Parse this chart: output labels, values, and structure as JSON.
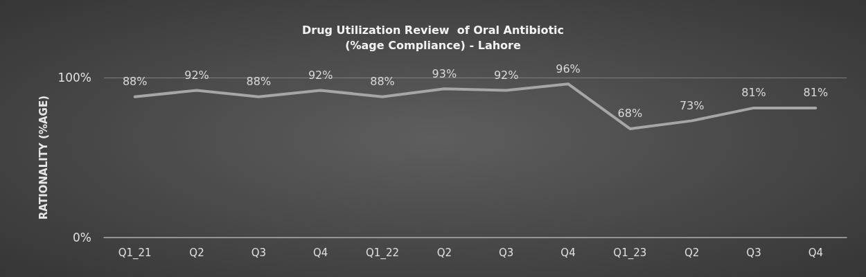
{
  "chart_data": {
    "type": "line",
    "title": "Drug Utilization Review  of Oral Antibiotic",
    "subtitle": "(%age Compliance) - Lahore",
    "ylabel": "RATIONALITY (%AGE)",
    "categories": [
      "Q1_21",
      "Q2",
      "Q3",
      "Q4",
      "Q1_22",
      "Q2",
      "Q3",
      "Q4",
      "Q1_23",
      "Q2",
      "Q3",
      "Q4"
    ],
    "series": [
      {
        "color": "#a6a6a6",
        "values": [
          88,
          92,
          88,
          92,
          88,
          93,
          92,
          96,
          68,
          73,
          81,
          81
        ],
        "value_labels": [
          "88%",
          "92%",
          "88%",
          "92%",
          "88%",
          "93%",
          "92%",
          "96%",
          "68%",
          "73%",
          "81%",
          "81%"
        ]
      }
    ],
    "ylim": [
      0,
      100
    ],
    "yticks": [
      {
        "value": 0,
        "label": "0%"
      },
      {
        "value": 100,
        "label": "100%"
      }
    ],
    "grid": "y",
    "marker": "none",
    "line_style": "solid"
  }
}
